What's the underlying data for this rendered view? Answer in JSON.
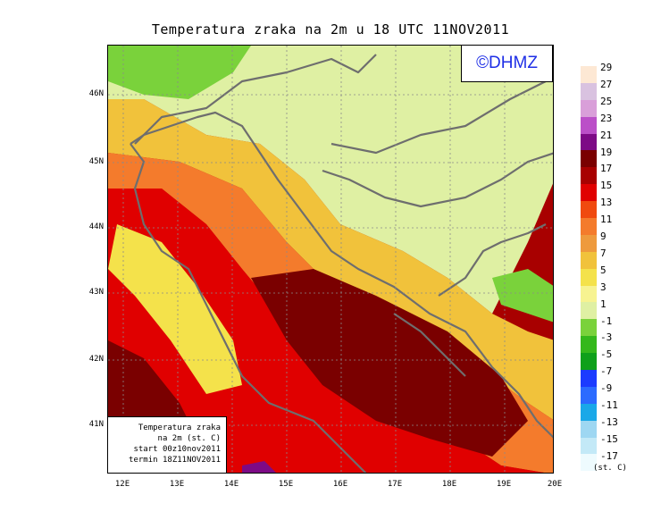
{
  "title": "Temperatura zraka na 2m u 18 UTC 11NOV2011",
  "logo_text": "©DHMZ",
  "info_box": {
    "line1": "Temperatura zraka",
    "line2": "na 2m (st. C)",
    "line3": "start 00z10nov2011",
    "line4": "termin 18Z11NOV2011"
  },
  "lat_labels": [
    "46N",
    "45N",
    "44N",
    "43N",
    "42N",
    "41N"
  ],
  "lon_labels": [
    "12E",
    "13E",
    "14E",
    "15E",
    "16E",
    "17E",
    "18E",
    "19E",
    "20E"
  ],
  "colorbar": {
    "labels": [
      "29",
      "27",
      "25",
      "23",
      "21",
      "19",
      "17",
      "15",
      "13",
      "11",
      "9",
      "7",
      "5",
      "3",
      "1",
      "-1",
      "-3",
      "-5",
      "-7",
      "-9",
      "-11",
      "-13",
      "-15",
      "-17"
    ],
    "colors": [
      "#fde8d4",
      "#d9c2e0",
      "#d99fd9",
      "#bb4fc8",
      "#7d0a86",
      "#7a0000",
      "#a80000",
      "#e00000",
      "#f04a0f",
      "#f47b2c",
      "#ee9a3d",
      "#f1c23b",
      "#f4e24b",
      "#f7f391",
      "#dff0a3",
      "#7ad23b",
      "#34b81b",
      "#0ea01a",
      "#1c3bff",
      "#2c6bff",
      "#1aa8e8",
      "#9ed7f2",
      "#c3e9f7",
      "#eefbfe"
    ],
    "unit": "(st. C)"
  }
}
